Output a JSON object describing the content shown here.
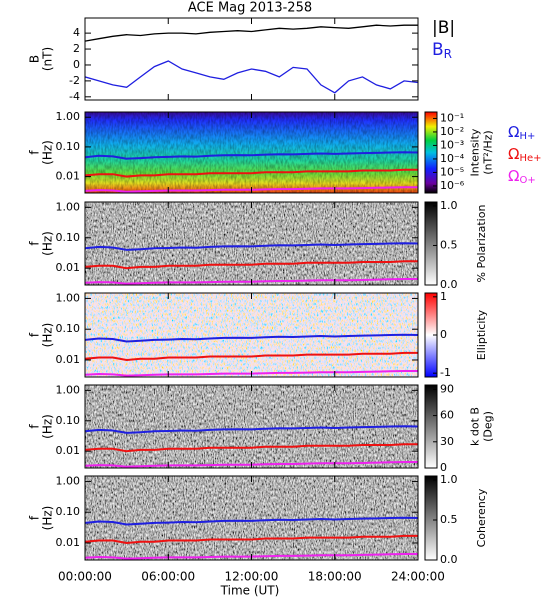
{
  "chart_data": [
    {
      "type": "line",
      "title": "ACE Mag 2013-258",
      "ylabel": [
        "B",
        "(nT)"
      ],
      "x": [
        0,
        1,
        2,
        3,
        4,
        5,
        6,
        7,
        8,
        9,
        10,
        11,
        12,
        13,
        14,
        15,
        16,
        17,
        18,
        19,
        20,
        21,
        22,
        23,
        24
      ],
      "ylim": [
        -4.4,
        5.9
      ],
      "yticks": [
        -4,
        -2,
        0,
        2,
        4
      ],
      "series": [
        {
          "name": "|B|",
          "color": "#000000",
          "values": [
            3.0,
            3.3,
            3.6,
            3.8,
            3.7,
            3.9,
            4.0,
            4.0,
            3.9,
            4.1,
            4.2,
            4.3,
            4.2,
            4.4,
            4.6,
            4.5,
            4.6,
            4.8,
            4.7,
            4.6,
            4.8,
            5.0,
            4.9,
            5.0,
            5.0
          ]
        },
        {
          "name": "BR",
          "color": "#1f1fe0",
          "values": [
            -1.5,
            -2.0,
            -2.5,
            -2.8,
            -1.5,
            -0.2,
            0.5,
            -0.5,
            -1.0,
            -1.5,
            -1.8,
            -1.0,
            -0.5,
            -0.8,
            -1.5,
            -0.3,
            -0.5,
            -2.5,
            -3.5,
            -2.0,
            -1.5,
            -2.5,
            -3.0,
            -2.0,
            -2.2
          ]
        }
      ]
    },
    {
      "type": "spectrogram",
      "ylabel": [
        "f",
        "(Hz)"
      ],
      "colormap": "rainbow",
      "ylog": true,
      "x": [
        0,
        1,
        2,
        3,
        4,
        5,
        6,
        7,
        8,
        9,
        10,
        11,
        12,
        13,
        14,
        15,
        16,
        17,
        18,
        19,
        20,
        21,
        22,
        23,
        24
      ],
      "ylim": [
        0.0028,
        1.5
      ],
      "yticks": [
        {
          "value": 1,
          "label": "1.00"
        },
        {
          "value": 0.1,
          "label": "0.10"
        },
        {
          "value": 0.01,
          "label": "0.01"
        }
      ],
      "colorbar_label": [
        "Intensity",
        "(nT²/Hz)"
      ],
      "clog": true,
      "clim": [
        3e-07,
        0.3
      ],
      "cticks": [
        {
          "value": 0.1,
          "label": "10⁻¹"
        },
        {
          "value": 0.01,
          "label": "10⁻²"
        },
        {
          "value": 0.001,
          "label": "10⁻³"
        },
        {
          "value": 0.0001,
          "label": "10⁻⁴"
        },
        {
          "value": 1e-05,
          "label": "10⁻⁵"
        },
        {
          "value": 1e-06,
          "label": "10⁻⁶"
        }
      ],
      "series": [
        {
          "name": "ΩH+",
          "color": "#1f1fe0",
          "values": [
            0.045,
            0.05,
            0.048,
            0.04,
            0.042,
            0.045,
            0.046,
            0.048,
            0.047,
            0.05,
            0.052,
            0.053,
            0.052,
            0.055,
            0.057,
            0.056,
            0.058,
            0.06,
            0.058,
            0.06,
            0.062,
            0.063,
            0.065,
            0.066,
            0.065
          ]
        },
        {
          "name": "ΩHe+",
          "color": "#ee1111",
          "values": [
            0.011,
            0.012,
            0.012,
            0.01,
            0.011,
            0.011,
            0.012,
            0.012,
            0.012,
            0.013,
            0.013,
            0.013,
            0.013,
            0.014,
            0.014,
            0.014,
            0.015,
            0.015,
            0.015,
            0.015,
            0.016,
            0.016,
            0.016,
            0.017,
            0.017
          ]
        },
        {
          "name": "ΩO+",
          "color": "#ee22ee",
          "values": [
            0.0033,
            0.0035,
            0.0034,
            0.0031,
            0.0032,
            0.0033,
            0.0034,
            0.0034,
            0.0034,
            0.0035,
            0.0036,
            0.0036,
            0.0036,
            0.0037,
            0.0038,
            0.0038,
            0.0039,
            0.004,
            0.004,
            0.004,
            0.0041,
            0.0042,
            0.0043,
            0.0044,
            0.0044
          ]
        }
      ]
    },
    {
      "type": "spectrogram",
      "ylabel": [
        "f",
        "(Hz)"
      ],
      "colormap": "gray",
      "ylog": true,
      "x": [
        0,
        1,
        2,
        3,
        4,
        5,
        6,
        7,
        8,
        9,
        10,
        11,
        12,
        13,
        14,
        15,
        16,
        17,
        18,
        19,
        20,
        21,
        22,
        23,
        24
      ],
      "ylim": [
        0.0028,
        1.5
      ],
      "yticks": [
        {
          "value": 1,
          "label": "1.00"
        },
        {
          "value": 0.1,
          "label": "0.10"
        },
        {
          "value": 0.01,
          "label": "0.01"
        }
      ],
      "colorbar_label": [
        "% Polarization"
      ],
      "clim": [
        0,
        1.05
      ],
      "cticks": [
        {
          "value": 0,
          "label": "0.0"
        },
        {
          "value": 0.5,
          "label": "0.5"
        },
        {
          "value": 1,
          "label": "1.0"
        }
      ],
      "series": [
        {
          "color": "#1f1fe0",
          "values": [
            0.045,
            0.05,
            0.048,
            0.04,
            0.042,
            0.045,
            0.046,
            0.048,
            0.047,
            0.05,
            0.052,
            0.053,
            0.052,
            0.055,
            0.057,
            0.056,
            0.058,
            0.06,
            0.058,
            0.06,
            0.062,
            0.063,
            0.065,
            0.066,
            0.065
          ]
        },
        {
          "color": "#ee1111",
          "values": [
            0.011,
            0.012,
            0.012,
            0.01,
            0.011,
            0.011,
            0.012,
            0.012,
            0.012,
            0.013,
            0.013,
            0.013,
            0.013,
            0.014,
            0.014,
            0.014,
            0.015,
            0.015,
            0.015,
            0.015,
            0.016,
            0.016,
            0.016,
            0.017,
            0.017
          ]
        },
        {
          "color": "#ee22ee",
          "values": [
            0.0033,
            0.0035,
            0.0034,
            0.0031,
            0.0032,
            0.0033,
            0.0034,
            0.0034,
            0.0034,
            0.0035,
            0.0036,
            0.0036,
            0.0036,
            0.0037,
            0.0038,
            0.0038,
            0.0039,
            0.004,
            0.004,
            0.004,
            0.0041,
            0.0042,
            0.0043,
            0.0044,
            0.0044
          ]
        }
      ]
    },
    {
      "type": "spectrogram",
      "ylabel": [
        "f",
        "(Hz)"
      ],
      "colormap": "red-blue",
      "ylog": true,
      "x": [
        0,
        1,
        2,
        3,
        4,
        5,
        6,
        7,
        8,
        9,
        10,
        11,
        12,
        13,
        14,
        15,
        16,
        17,
        18,
        19,
        20,
        21,
        22,
        23,
        24
      ],
      "ylim": [
        0.0028,
        1.5
      ],
      "yticks": [
        {
          "value": 1,
          "label": "1.00"
        },
        {
          "value": 0.1,
          "label": "0.10"
        },
        {
          "value": 0.01,
          "label": "0.01"
        }
      ],
      "colorbar_label": [
        "Ellipticity"
      ],
      "clim": [
        -1.1,
        1.1
      ],
      "cticks": [
        -1,
        0,
        1
      ],
      "series": [
        {
          "color": "#1f1fe0",
          "values": [
            0.045,
            0.05,
            0.048,
            0.04,
            0.042,
            0.045,
            0.046,
            0.048,
            0.047,
            0.05,
            0.052,
            0.053,
            0.052,
            0.055,
            0.057,
            0.056,
            0.058,
            0.06,
            0.058,
            0.06,
            0.062,
            0.063,
            0.065,
            0.066,
            0.065
          ]
        },
        {
          "color": "#ee1111",
          "values": [
            0.011,
            0.012,
            0.012,
            0.01,
            0.011,
            0.011,
            0.012,
            0.012,
            0.012,
            0.013,
            0.013,
            0.013,
            0.013,
            0.014,
            0.014,
            0.014,
            0.015,
            0.015,
            0.015,
            0.015,
            0.016,
            0.016,
            0.016,
            0.017,
            0.017
          ]
        },
        {
          "color": "#ee22ee",
          "values": [
            0.0033,
            0.0035,
            0.0034,
            0.0031,
            0.0032,
            0.0033,
            0.0034,
            0.0034,
            0.0034,
            0.0035,
            0.0036,
            0.0036,
            0.0036,
            0.0037,
            0.0038,
            0.0038,
            0.0039,
            0.004,
            0.004,
            0.004,
            0.0041,
            0.0042,
            0.0043,
            0.0044,
            0.0044
          ]
        }
      ]
    },
    {
      "type": "spectrogram",
      "ylabel": [
        "f",
        "(Hz)"
      ],
      "colormap": "gray",
      "ylog": true,
      "x": [
        0,
        1,
        2,
        3,
        4,
        5,
        6,
        7,
        8,
        9,
        10,
        11,
        12,
        13,
        14,
        15,
        16,
        17,
        18,
        19,
        20,
        21,
        22,
        23,
        24
      ],
      "ylim": [
        0.0028,
        1.5
      ],
      "yticks": [
        {
          "value": 1,
          "label": "1.00"
        },
        {
          "value": 0.1,
          "label": "0.10"
        },
        {
          "value": 0.01,
          "label": "0.01"
        }
      ],
      "colorbar_label": [
        "k dot B",
        "(Deg)"
      ],
      "clim": [
        0,
        95
      ],
      "cticks": [
        0,
        30,
        60,
        90
      ],
      "series": [
        {
          "color": "#1f1fe0",
          "values": [
            0.045,
            0.05,
            0.048,
            0.04,
            0.042,
            0.045,
            0.046,
            0.048,
            0.047,
            0.05,
            0.052,
            0.053,
            0.052,
            0.055,
            0.057,
            0.056,
            0.058,
            0.06,
            0.058,
            0.06,
            0.062,
            0.063,
            0.065,
            0.066,
            0.065
          ]
        },
        {
          "color": "#ee1111",
          "values": [
            0.011,
            0.012,
            0.012,
            0.01,
            0.011,
            0.011,
            0.012,
            0.012,
            0.012,
            0.013,
            0.013,
            0.013,
            0.013,
            0.014,
            0.014,
            0.014,
            0.015,
            0.015,
            0.015,
            0.015,
            0.016,
            0.016,
            0.016,
            0.017,
            0.017
          ]
        },
        {
          "color": "#ee22ee",
          "values": [
            0.0033,
            0.0035,
            0.0034,
            0.0031,
            0.0032,
            0.0033,
            0.0034,
            0.0034,
            0.0034,
            0.0035,
            0.0036,
            0.0036,
            0.0036,
            0.0037,
            0.0038,
            0.0038,
            0.0039,
            0.004,
            0.004,
            0.004,
            0.0041,
            0.0042,
            0.0043,
            0.0044,
            0.0044
          ]
        }
      ]
    },
    {
      "type": "spectrogram",
      "ylabel": [
        "f",
        "(Hz)"
      ],
      "colormap": "gray",
      "ylog": true,
      "xlabel": "Time (UT)",
      "x": [
        0,
        1,
        2,
        3,
        4,
        5,
        6,
        7,
        8,
        9,
        10,
        11,
        12,
        13,
        14,
        15,
        16,
        17,
        18,
        19,
        20,
        21,
        22,
        23,
        24
      ],
      "xlim": [
        0,
        24
      ],
      "xticks": [
        {
          "value": 0,
          "label": "00:00:00"
        },
        {
          "value": 6,
          "label": "06:00:00"
        },
        {
          "value": 12,
          "label": "12:00:00"
        },
        {
          "value": 18,
          "label": "18:00:00"
        },
        {
          "value": 24,
          "label": "24:00:00"
        }
      ],
      "ylim": [
        0.0028,
        1.5
      ],
      "yticks": [
        {
          "value": 1,
          "label": "1.00"
        },
        {
          "value": 0.1,
          "label": "0.10"
        },
        {
          "value": 0.01,
          "label": "0.01"
        }
      ],
      "colorbar_label": [
        "Coherency"
      ],
      "clim": [
        0,
        1.05
      ],
      "cticks": [
        {
          "value": 0,
          "label": "0.0"
        },
        {
          "value": 0.5,
          "label": "0.5"
        },
        {
          "value": 1,
          "label": "1.0"
        }
      ],
      "series": [
        {
          "color": "#1f1fe0",
          "values": [
            0.045,
            0.05,
            0.048,
            0.04,
            0.042,
            0.045,
            0.046,
            0.048,
            0.047,
            0.05,
            0.052,
            0.053,
            0.052,
            0.055,
            0.057,
            0.056,
            0.058,
            0.06,
            0.058,
            0.06,
            0.062,
            0.063,
            0.065,
            0.066,
            0.065
          ]
        },
        {
          "color": "#ee1111",
          "values": [
            0.011,
            0.012,
            0.012,
            0.01,
            0.011,
            0.011,
            0.012,
            0.012,
            0.012,
            0.013,
            0.013,
            0.013,
            0.013,
            0.014,
            0.014,
            0.014,
            0.015,
            0.015,
            0.015,
            0.015,
            0.016,
            0.016,
            0.016,
            0.017,
            0.017
          ]
        },
        {
          "color": "#ee22ee",
          "values": [
            0.0033,
            0.0035,
            0.0034,
            0.0031,
            0.0032,
            0.0033,
            0.0034,
            0.0034,
            0.0034,
            0.0035,
            0.0036,
            0.0036,
            0.0036,
            0.0037,
            0.0038,
            0.0038,
            0.0039,
            0.004,
            0.004,
            0.004,
            0.0041,
            0.0042,
            0.0043,
            0.0044,
            0.0044
          ]
        }
      ]
    }
  ]
}
